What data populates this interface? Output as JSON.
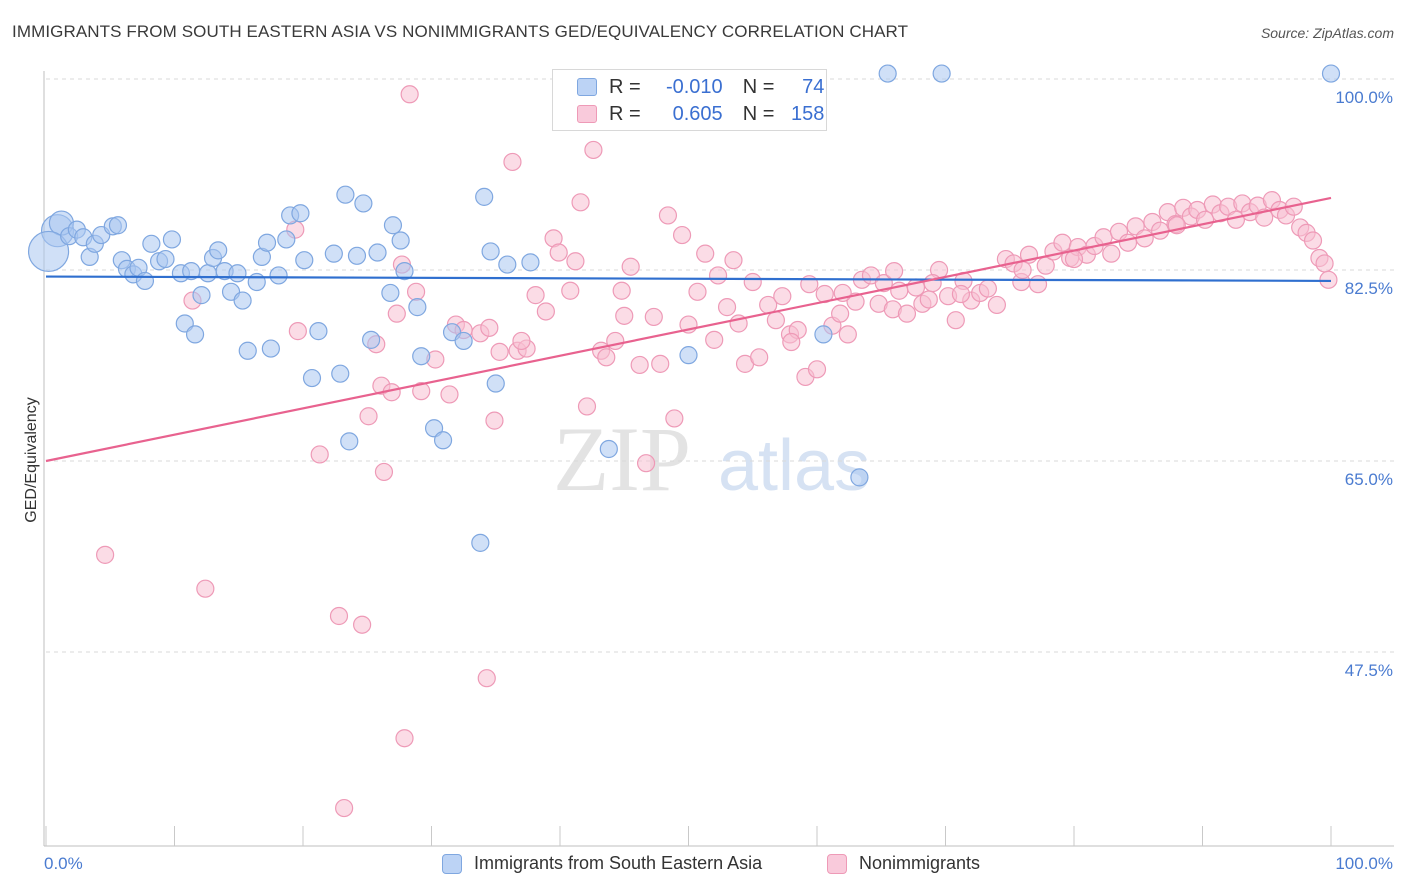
{
  "header": {
    "title": "IMMIGRANTS FROM SOUTH EASTERN ASIA VS NONIMMIGRANTS GED/EQUIVALENCY CORRELATION CHART",
    "source": "Source: ZipAtlas.com"
  },
  "watermark": {
    "zip": "ZIP",
    "atlas": "atlas"
  },
  "colors": {
    "blue_fill": "#a9c6f0",
    "blue_stroke": "#7fa7e0",
    "blue_line": "#2f6fcf",
    "pink_fill": "#f7bfd1",
    "pink_stroke": "#ee9ab7",
    "pink_line": "#e8628f",
    "tick_text": "#4a7bd0"
  },
  "legend_top": {
    "rows": [
      {
        "r_key": "R =",
        "r_value": "-0.010",
        "n_key": "N =",
        "n_value": "74"
      },
      {
        "r_key": "R =",
        "r_value": "0.605",
        "n_key": "N =",
        "n_value": "158"
      }
    ]
  },
  "chart_data": {
    "type": "scatter",
    "title": "IMMIGRANTS FROM SOUTH EASTERN ASIA VS NONIMMIGRANTS GED/EQUIVALENCY CORRELATION CHART",
    "xlabel": "",
    "ylabel": "GED/Equivalency",
    "xlim": [
      0,
      100
    ],
    "ylim": [
      31,
      102
    ],
    "x_tick_labels": [
      "0.0%",
      "100.0%"
    ],
    "y_ticks": [
      {
        "value": 100.0,
        "label": "100.0%"
      },
      {
        "value": 82.5,
        "label": "82.5%"
      },
      {
        "value": 65.0,
        "label": "65.0%"
      },
      {
        "value": 47.5,
        "label": "47.5%"
      }
    ],
    "grid": "horizontal dashed",
    "legend": "bottom",
    "series": [
      {
        "name": "Immigrants from South Eastern Asia",
        "color": "blue",
        "trend": {
          "x": [
            0,
            100
          ],
          "y": [
            81.9,
            81.5
          ]
        },
        "points": [
          {
            "x": 0.9,
            "y": 86.1,
            "big": 2
          },
          {
            "x": 1.2,
            "y": 86.8,
            "big": 1
          },
          {
            "x": 0.2,
            "y": 84.2,
            "big": 3
          },
          {
            "x": 1.8,
            "y": 85.6
          },
          {
            "x": 2.4,
            "y": 86.2
          },
          {
            "x": 2.9,
            "y": 85.5
          },
          {
            "x": 3.4,
            "y": 83.7
          },
          {
            "x": 3.8,
            "y": 84.9
          },
          {
            "x": 4.3,
            "y": 85.7
          },
          {
            "x": 5.2,
            "y": 86.5
          },
          {
            "x": 5.6,
            "y": 86.6
          },
          {
            "x": 5.9,
            "y": 83.4
          },
          {
            "x": 6.3,
            "y": 82.6
          },
          {
            "x": 6.8,
            "y": 82.1
          },
          {
            "x": 7.2,
            "y": 82.7
          },
          {
            "x": 7.7,
            "y": 81.5
          },
          {
            "x": 8.2,
            "y": 84.9
          },
          {
            "x": 8.8,
            "y": 83.3
          },
          {
            "x": 9.3,
            "y": 83.5
          },
          {
            "x": 9.8,
            "y": 85.3
          },
          {
            "x": 10.5,
            "y": 82.2
          },
          {
            "x": 10.8,
            "y": 77.6
          },
          {
            "x": 11.3,
            "y": 82.4
          },
          {
            "x": 11.6,
            "y": 76.6
          },
          {
            "x": 12.1,
            "y": 80.2
          },
          {
            "x": 12.6,
            "y": 82.2
          },
          {
            "x": 13.0,
            "y": 83.6
          },
          {
            "x": 13.4,
            "y": 84.3
          },
          {
            "x": 13.9,
            "y": 82.4
          },
          {
            "x": 14.4,
            "y": 80.5
          },
          {
            "x": 14.9,
            "y": 82.2
          },
          {
            "x": 15.3,
            "y": 79.7
          },
          {
            "x": 15.7,
            "y": 75.1
          },
          {
            "x": 16.4,
            "y": 81.4
          },
          {
            "x": 16.8,
            "y": 83.7
          },
          {
            "x": 17.2,
            "y": 85.0
          },
          {
            "x": 17.5,
            "y": 75.3
          },
          {
            "x": 18.1,
            "y": 82.0
          },
          {
            "x": 18.7,
            "y": 85.3
          },
          {
            "x": 19.0,
            "y": 87.5
          },
          {
            "x": 19.8,
            "y": 87.7
          },
          {
            "x": 20.1,
            "y": 83.4
          },
          {
            "x": 20.7,
            "y": 72.6
          },
          {
            "x": 21.2,
            "y": 76.9
          },
          {
            "x": 22.4,
            "y": 84.0
          },
          {
            "x": 22.9,
            "y": 73.0
          },
          {
            "x": 23.3,
            "y": 89.4
          },
          {
            "x": 23.6,
            "y": 66.8
          },
          {
            "x": 24.2,
            "y": 83.8
          },
          {
            "x": 24.7,
            "y": 88.6
          },
          {
            "x": 25.3,
            "y": 76.1
          },
          {
            "x": 25.8,
            "y": 84.1
          },
          {
            "x": 26.8,
            "y": 80.4
          },
          {
            "x": 27.0,
            "y": 86.6
          },
          {
            "x": 27.6,
            "y": 85.2
          },
          {
            "x": 27.9,
            "y": 82.4
          },
          {
            "x": 28.9,
            "y": 79.1
          },
          {
            "x": 29.2,
            "y": 74.6
          },
          {
            "x": 30.2,
            "y": 68.0
          },
          {
            "x": 30.9,
            "y": 66.9
          },
          {
            "x": 31.6,
            "y": 76.8
          },
          {
            "x": 32.5,
            "y": 76.0
          },
          {
            "x": 33.8,
            "y": 57.5
          },
          {
            "x": 34.1,
            "y": 89.2
          },
          {
            "x": 34.6,
            "y": 84.2
          },
          {
            "x": 35.0,
            "y": 72.1
          },
          {
            "x": 35.9,
            "y": 83.0
          },
          {
            "x": 37.7,
            "y": 83.2
          },
          {
            "x": 43.8,
            "y": 66.1
          },
          {
            "x": 50.0,
            "y": 74.7
          },
          {
            "x": 60.5,
            "y": 76.6
          },
          {
            "x": 63.3,
            "y": 63.5
          },
          {
            "x": 65.5,
            "y": 100.5
          },
          {
            "x": 69.7,
            "y": 100.5
          },
          {
            "x": 100.0,
            "y": 100.5
          }
        ]
      },
      {
        "name": "Nonimmigrants",
        "color": "pink",
        "trend": {
          "x": [
            0,
            100
          ],
          "y": [
            65.0,
            89.1
          ]
        },
        "points": [
          {
            "x": 4.6,
            "y": 56.4
          },
          {
            "x": 11.4,
            "y": 79.7
          },
          {
            "x": 12.4,
            "y": 53.3
          },
          {
            "x": 19.4,
            "y": 86.2
          },
          {
            "x": 19.6,
            "y": 76.9
          },
          {
            "x": 21.3,
            "y": 65.6
          },
          {
            "x": 22.8,
            "y": 50.8
          },
          {
            "x": 23.2,
            "y": 33.2
          },
          {
            "x": 24.6,
            "y": 50.0
          },
          {
            "x": 25.1,
            "y": 69.1
          },
          {
            "x": 25.7,
            "y": 75.7
          },
          {
            "x": 26.1,
            "y": 71.9
          },
          {
            "x": 26.3,
            "y": 64.0
          },
          {
            "x": 26.9,
            "y": 71.3
          },
          {
            "x": 27.3,
            "y": 78.5
          },
          {
            "x": 27.7,
            "y": 83.0
          },
          {
            "x": 27.9,
            "y": 39.6
          },
          {
            "x": 28.3,
            "y": 98.6
          },
          {
            "x": 28.8,
            "y": 80.5
          },
          {
            "x": 29.2,
            "y": 71.4
          },
          {
            "x": 30.3,
            "y": 74.3
          },
          {
            "x": 31.4,
            "y": 71.1
          },
          {
            "x": 31.9,
            "y": 77.5
          },
          {
            "x": 32.5,
            "y": 77.0
          },
          {
            "x": 33.8,
            "y": 76.7
          },
          {
            "x": 34.3,
            "y": 45.1
          },
          {
            "x": 34.5,
            "y": 77.2
          },
          {
            "x": 34.9,
            "y": 68.7
          },
          {
            "x": 35.3,
            "y": 75.0
          },
          {
            "x": 36.3,
            "y": 92.4
          },
          {
            "x": 36.7,
            "y": 75.1
          },
          {
            "x": 37.4,
            "y": 75.3
          },
          {
            "x": 38.1,
            "y": 80.2
          },
          {
            "x": 38.9,
            "y": 78.7
          },
          {
            "x": 39.5,
            "y": 85.4
          },
          {
            "x": 39.9,
            "y": 84.1
          },
          {
            "x": 40.8,
            "y": 80.6
          },
          {
            "x": 41.2,
            "y": 83.3
          },
          {
            "x": 41.6,
            "y": 88.7
          },
          {
            "x": 42.1,
            "y": 70.0
          },
          {
            "x": 42.6,
            "y": 93.5
          },
          {
            "x": 43.2,
            "y": 75.1
          },
          {
            "x": 43.6,
            "y": 74.5
          },
          {
            "x": 44.3,
            "y": 76.0
          },
          {
            "x": 45.0,
            "y": 78.3
          },
          {
            "x": 45.5,
            "y": 82.8
          },
          {
            "x": 46.2,
            "y": 73.8
          },
          {
            "x": 46.7,
            "y": 64.8
          },
          {
            "x": 47.3,
            "y": 78.2
          },
          {
            "x": 47.8,
            "y": 73.9
          },
          {
            "x": 48.4,
            "y": 87.5
          },
          {
            "x": 48.9,
            "y": 68.9
          },
          {
            "x": 49.5,
            "y": 85.7
          },
          {
            "x": 50.0,
            "y": 77.5
          },
          {
            "x": 50.7,
            "y": 80.5
          },
          {
            "x": 51.3,
            "y": 84.0
          },
          {
            "x": 52.3,
            "y": 82.0
          },
          {
            "x": 53.0,
            "y": 79.1
          },
          {
            "x": 53.5,
            "y": 83.4
          },
          {
            "x": 53.9,
            "y": 77.6
          },
          {
            "x": 54.4,
            "y": 73.9
          },
          {
            "x": 55.0,
            "y": 81.4
          },
          {
            "x": 56.2,
            "y": 79.3
          },
          {
            "x": 56.8,
            "y": 77.9
          },
          {
            "x": 57.3,
            "y": 80.1
          },
          {
            "x": 57.9,
            "y": 76.6
          },
          {
            "x": 58.5,
            "y": 77.0
          },
          {
            "x": 59.1,
            "y": 72.7
          },
          {
            "x": 59.4,
            "y": 81.2
          },
          {
            "x": 60.0,
            "y": 73.4
          },
          {
            "x": 60.6,
            "y": 80.3
          },
          {
            "x": 61.2,
            "y": 77.4
          },
          {
            "x": 61.8,
            "y": 78.5
          },
          {
            "x": 62.4,
            "y": 76.6
          },
          {
            "x": 63.0,
            "y": 79.6
          },
          {
            "x": 63.5,
            "y": 81.6
          },
          {
            "x": 64.2,
            "y": 82.0
          },
          {
            "x": 64.8,
            "y": 79.4
          },
          {
            "x": 65.2,
            "y": 81.3
          },
          {
            "x": 65.9,
            "y": 78.9
          },
          {
            "x": 66.4,
            "y": 80.6
          },
          {
            "x": 67.0,
            "y": 78.5
          },
          {
            "x": 67.7,
            "y": 80.9
          },
          {
            "x": 68.2,
            "y": 79.4
          },
          {
            "x": 68.7,
            "y": 79.8
          },
          {
            "x": 69.5,
            "y": 82.5
          },
          {
            "x": 70.2,
            "y": 80.1
          },
          {
            "x": 70.8,
            "y": 77.9
          },
          {
            "x": 71.4,
            "y": 81.5
          },
          {
            "x": 72.0,
            "y": 79.7
          },
          {
            "x": 72.7,
            "y": 80.4
          },
          {
            "x": 73.3,
            "y": 80.8
          },
          {
            "x": 74.0,
            "y": 79.3
          },
          {
            "x": 74.7,
            "y": 83.5
          },
          {
            "x": 75.3,
            "y": 83.1
          },
          {
            "x": 75.9,
            "y": 81.4
          },
          {
            "x": 76.5,
            "y": 83.9
          },
          {
            "x": 77.2,
            "y": 81.2
          },
          {
            "x": 77.8,
            "y": 82.9
          },
          {
            "x": 78.4,
            "y": 84.2
          },
          {
            "x": 79.1,
            "y": 85.0
          },
          {
            "x": 79.7,
            "y": 83.6
          },
          {
            "x": 80.3,
            "y": 84.6
          },
          {
            "x": 81.0,
            "y": 83.9
          },
          {
            "x": 81.6,
            "y": 84.7
          },
          {
            "x": 82.3,
            "y": 85.5
          },
          {
            "x": 82.9,
            "y": 84.0
          },
          {
            "x": 83.5,
            "y": 86.0
          },
          {
            "x": 84.2,
            "y": 85.0
          },
          {
            "x": 84.8,
            "y": 86.5
          },
          {
            "x": 85.5,
            "y": 85.4
          },
          {
            "x": 86.1,
            "y": 86.9
          },
          {
            "x": 86.7,
            "y": 86.1
          },
          {
            "x": 87.3,
            "y": 87.8
          },
          {
            "x": 87.9,
            "y": 86.7
          },
          {
            "x": 88.5,
            "y": 88.2
          },
          {
            "x": 89.1,
            "y": 87.4
          },
          {
            "x": 89.6,
            "y": 88.0
          },
          {
            "x": 90.2,
            "y": 87.1
          },
          {
            "x": 90.8,
            "y": 88.5
          },
          {
            "x": 91.4,
            "y": 87.7
          },
          {
            "x": 92.0,
            "y": 88.3
          },
          {
            "x": 92.6,
            "y": 87.1
          },
          {
            "x": 93.1,
            "y": 88.6
          },
          {
            "x": 93.7,
            "y": 87.8
          },
          {
            "x": 94.3,
            "y": 88.4
          },
          {
            "x": 94.8,
            "y": 87.3
          },
          {
            "x": 95.4,
            "y": 88.9
          },
          {
            "x": 96.0,
            "y": 88.0
          },
          {
            "x": 96.5,
            "y": 87.5
          },
          {
            "x": 97.1,
            "y": 88.3
          },
          {
            "x": 97.6,
            "y": 86.4
          },
          {
            "x": 98.1,
            "y": 85.9
          },
          {
            "x": 98.6,
            "y": 85.2
          },
          {
            "x": 99.1,
            "y": 83.6
          },
          {
            "x": 99.5,
            "y": 83.1
          },
          {
            "x": 99.8,
            "y": 81.6
          },
          {
            "x": 71.2,
            "y": 80.3
          },
          {
            "x": 69.0,
            "y": 81.3
          },
          {
            "x": 66.0,
            "y": 82.4
          },
          {
            "x": 62.0,
            "y": 80.4
          },
          {
            "x": 58.0,
            "y": 75.9
          },
          {
            "x": 55.5,
            "y": 74.5
          },
          {
            "x": 52.0,
            "y": 76.1
          },
          {
            "x": 44.8,
            "y": 80.6
          },
          {
            "x": 37.0,
            "y": 76.0
          },
          {
            "x": 88.0,
            "y": 86.6
          },
          {
            "x": 76.0,
            "y": 82.5
          },
          {
            "x": 80.0,
            "y": 83.5
          }
        ]
      }
    ]
  },
  "legend_bottom": {
    "items": [
      {
        "label": "Immigrants from South Eastern Asia"
      },
      {
        "label": "Nonimmigrants"
      }
    ]
  }
}
